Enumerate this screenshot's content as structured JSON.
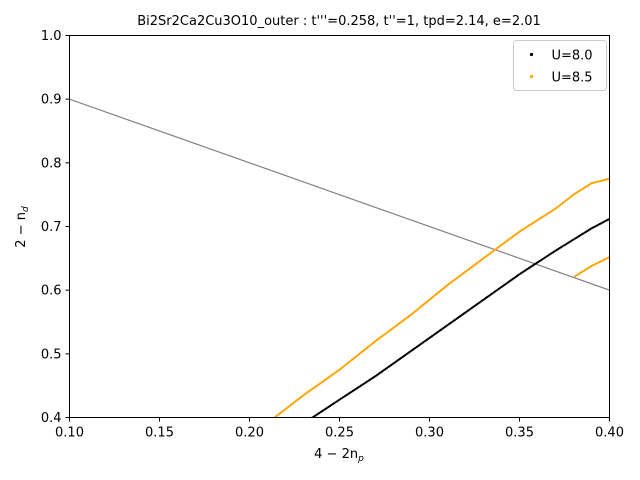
{
  "chart_data": {
    "type": "scatter",
    "title": "Bi2Sr2Ca2Cu3O10_outer : t'''=0.258, t''=1, tpd=2.14, e=2.01",
    "xlabel": "4 − 2n",
    "xlabel_sub": "p",
    "ylabel": "2 − n",
    "ylabel_sub": "d",
    "xlim": [
      0.1,
      0.4
    ],
    "ylim": [
      0.4,
      1.0
    ],
    "xticks": [
      "0.10",
      "0.15",
      "0.20",
      "0.25",
      "0.30",
      "0.35",
      "0.40"
    ],
    "yticks": [
      "0.4",
      "0.5",
      "0.6",
      "0.7",
      "0.8",
      "0.9",
      "1.0"
    ],
    "legend_position": "top-right",
    "reference_line": {
      "x": [
        0.1,
        0.4
      ],
      "y": [
        0.9,
        0.6
      ],
      "color": "#808080"
    },
    "series": [
      {
        "name": "U=8.0",
        "color": "#000000",
        "x": [
          0.235,
          0.25,
          0.27,
          0.29,
          0.31,
          0.33,
          0.35,
          0.37,
          0.39,
          0.4
        ],
        "y": [
          0.4,
          0.428,
          0.465,
          0.505,
          0.545,
          0.585,
          0.625,
          0.662,
          0.697,
          0.712
        ]
      },
      {
        "name": "U=8.5",
        "color": "#ffa500",
        "x": [
          0.214,
          0.23,
          0.25,
          0.27,
          0.29,
          0.31,
          0.33,
          0.35,
          0.37,
          0.38,
          0.39,
          0.4
        ],
        "y": [
          0.4,
          0.435,
          0.475,
          0.52,
          0.562,
          0.608,
          0.65,
          0.692,
          0.728,
          0.75,
          0.768,
          0.775
        ]
      },
      {
        "name": "U=8.5",
        "color": "#ffa500",
        "legend": false,
        "x": [
          0.381,
          0.39,
          0.4
        ],
        "y": [
          0.622,
          0.638,
          0.652
        ]
      }
    ]
  }
}
